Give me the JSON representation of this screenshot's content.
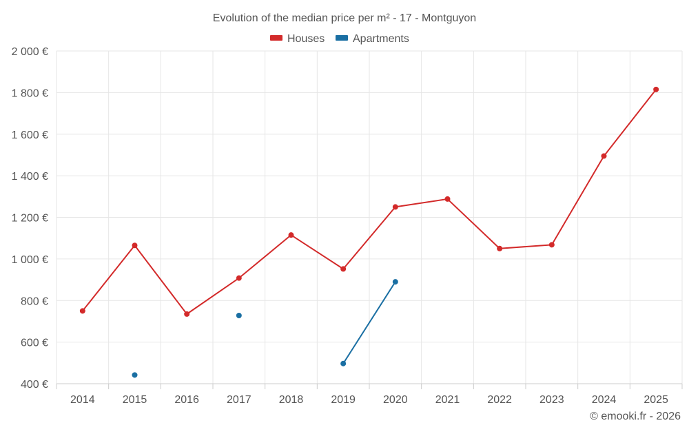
{
  "chart_data": {
    "type": "line",
    "title": "Evolution of the median price per m² - 17 - Montguyon",
    "categories": [
      "2014",
      "2015",
      "2016",
      "2017",
      "2018",
      "2019",
      "2020",
      "2021",
      "2022",
      "2023",
      "2024",
      "2025"
    ],
    "series": [
      {
        "name": "Houses",
        "color": "#d32a2a",
        "values": [
          750,
          1065,
          735,
          908,
          1115,
          952,
          1250,
          1288,
          1050,
          1068,
          1495,
          1815
        ]
      },
      {
        "name": "Apartments",
        "color": "#1a6fa3",
        "values": [
          null,
          442,
          null,
          728,
          null,
          497,
          890,
          null,
          null,
          null,
          null,
          null
        ]
      }
    ],
    "y_ticks": [
      400,
      600,
      800,
      1000,
      1200,
      1400,
      1600,
      1800,
      2000
    ],
    "y_tick_labels": [
      "400 €",
      "600 €",
      "800 €",
      "1 000 €",
      "1 200 €",
      "1 400 €",
      "1 600 €",
      "1 800 €",
      "2 000 €"
    ],
    "ylim": [
      400,
      2000
    ],
    "xlabel": "",
    "ylabel": "",
    "legend_position": "top-center",
    "grid": true
  },
  "footer": {
    "credit": "© emooki.fr - 2026"
  }
}
